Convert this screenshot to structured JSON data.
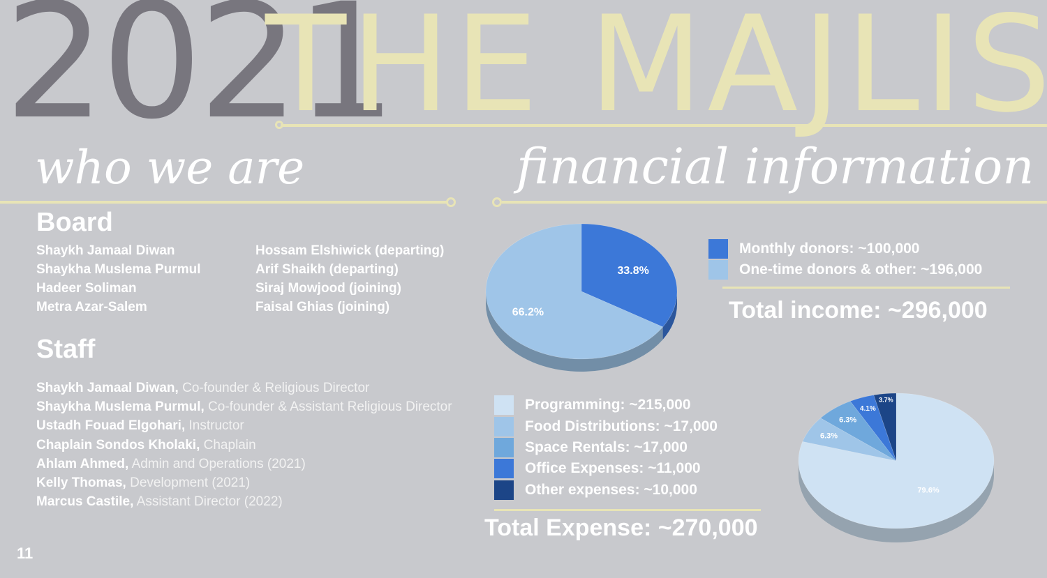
{
  "header": {
    "year": "2021",
    "title": "THE MAJLIS"
  },
  "who_we_are": {
    "heading": "who we are",
    "board": {
      "heading": "Board",
      "left": [
        "Shaykh Jamaal Diwan",
        "Shaykha Muslema Purmul",
        "Hadeer Soliman",
        "Metra Azar-Salem"
      ],
      "right": [
        "Hossam Elshiwick (departing)",
        "Arif Shaikh (departing)",
        "Siraj Mowjood (joining)",
        "Faisal Ghias (joining)"
      ]
    },
    "staff": {
      "heading": "Staff",
      "members": [
        {
          "name": "Shaykh Jamaal Diwan,",
          "role": "Co-founder & Religious Director"
        },
        {
          "name": "Shaykha Muslema Purmul,",
          "role": "Co-founder & Assistant Religious Director"
        },
        {
          "name": "Ustadh Fouad Elgohari,",
          "role": "Instructor"
        },
        {
          "name": "Chaplain Sondos Kholaki,",
          "role": "Chaplain"
        },
        {
          "name": "Ahlam Ahmed,",
          "role": "Admin and Operations (2021)"
        },
        {
          "name": "Kelly Thomas,",
          "role": "Development (2021)"
        },
        {
          "name": "Marcus Castile,",
          "role": "Assistant Director (2022)"
        }
      ]
    }
  },
  "financial": {
    "heading": "financial information",
    "income": {
      "legend": [
        "Monthly donors: ~100,000",
        "One-time donors & other: ~196,000"
      ],
      "total": "Total income: ~296,000"
    },
    "expense": {
      "legend": [
        "Programming: ~215,000",
        "Food Distributions: ~17,000",
        "Space Rentals: ~17,000",
        "Office Expenses: ~11,000",
        "Other expenses: ~10,000"
      ],
      "total": "Total Expense: ~270,000"
    }
  },
  "chart_data": [
    {
      "type": "pie",
      "categories": [
        "Monthly donors",
        "One-time donors & other"
      ],
      "values": [
        33.8,
        66.2
      ],
      "labels": [
        "33.8%",
        "66.2%"
      ],
      "colors": [
        "#3c78d8",
        "#9fc5e8"
      ]
    },
    {
      "type": "pie",
      "categories": [
        "Programming",
        "Food Distributions",
        "Space Rentals",
        "Office Expenses",
        "Other expenses"
      ],
      "values": [
        79.6,
        6.3,
        6.3,
        4.1,
        3.7
      ],
      "labels": [
        "79.6%",
        "6.3%",
        "6.3%",
        "4.1%",
        "3.7%"
      ],
      "colors": [
        "#cfe2f3",
        "#9fc5e8",
        "#6fa8dc",
        "#3c78d8",
        "#1c4587"
      ]
    }
  ],
  "page_number": "11"
}
